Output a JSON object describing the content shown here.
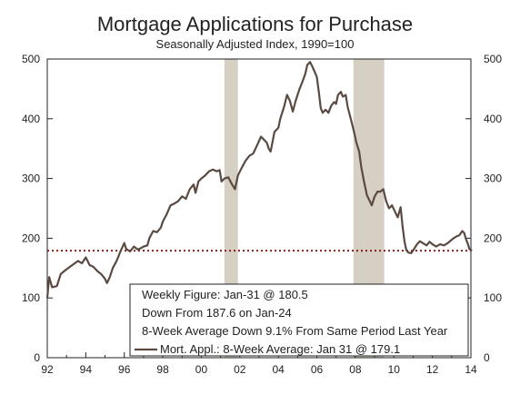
{
  "chart_data": {
    "type": "line",
    "title": "Mortgage Applications for Purchase",
    "subtitle": "Seasonally Adjusted Index, 1990=100",
    "xlim": [
      1992,
      2014
    ],
    "ylim": [
      0,
      500
    ],
    "x_ticks": [
      1992,
      1994,
      1996,
      1998,
      2000,
      2002,
      2004,
      2006,
      2008,
      2010,
      2012,
      2014
    ],
    "x_tick_labels": [
      "92",
      "94",
      "96",
      "98",
      "00",
      "02",
      "04",
      "06",
      "08",
      "10",
      "12",
      "14"
    ],
    "y_ticks": [
      0,
      100,
      200,
      300,
      400,
      500
    ],
    "y_tick_labels": [
      "0",
      "100",
      "200",
      "300",
      "400",
      "500"
    ],
    "recessions": [
      [
        2001.2,
        2001.9
      ],
      [
        2007.9,
        2009.5
      ]
    ],
    "reference_line": {
      "value": 179.1,
      "style": "dotted",
      "color": "#8b1a1a"
    },
    "annotations": [
      "Weekly Figure: Jan-31 @ 180.5",
      "Down From 187.6 on Jan-24",
      "8-Week Average Down 9.1% From Same Period Last Year"
    ],
    "series": [
      {
        "name": "Mort. Appl.: 8-Week Average: Jan 31 @ 179.1",
        "color": "#5a4a42",
        "points": [
          [
            1992.0,
            100
          ],
          [
            1992.1,
            135
          ],
          [
            1992.25,
            118
          ],
          [
            1992.5,
            120
          ],
          [
            1992.7,
            140
          ],
          [
            1993.0,
            148
          ],
          [
            1993.3,
            155
          ],
          [
            1993.6,
            162
          ],
          [
            1993.8,
            158
          ],
          [
            1994.0,
            168
          ],
          [
            1994.2,
            155
          ],
          [
            1994.4,
            152
          ],
          [
            1994.6,
            145
          ],
          [
            1994.8,
            140
          ],
          [
            1995.0,
            132
          ],
          [
            1995.1,
            125
          ],
          [
            1995.25,
            135
          ],
          [
            1995.4,
            150
          ],
          [
            1995.6,
            162
          ],
          [
            1995.8,
            178
          ],
          [
            1996.0,
            192
          ],
          [
            1996.1,
            182
          ],
          [
            1996.3,
            178
          ],
          [
            1996.5,
            186
          ],
          [
            1996.7,
            181
          ],
          [
            1996.9,
            184
          ],
          [
            1997.0,
            186
          ],
          [
            1997.2,
            188
          ],
          [
            1997.3,
            200
          ],
          [
            1997.5,
            212
          ],
          [
            1997.7,
            210
          ],
          [
            1997.9,
            218
          ],
          [
            1998.0,
            228
          ],
          [
            1998.2,
            240
          ],
          [
            1998.4,
            255
          ],
          [
            1998.6,
            258
          ],
          [
            1998.8,
            262
          ],
          [
            1999.0,
            270
          ],
          [
            1999.2,
            266
          ],
          [
            1999.4,
            282
          ],
          [
            1999.6,
            290
          ],
          [
            1999.7,
            276
          ],
          [
            1999.85,
            295
          ],
          [
            2000.0,
            300
          ],
          [
            2000.2,
            305
          ],
          [
            2000.4,
            312
          ],
          [
            2000.6,
            315
          ],
          [
            2000.8,
            312
          ],
          [
            2000.95,
            314
          ],
          [
            2001.05,
            295
          ],
          [
            2001.2,
            300
          ],
          [
            2001.4,
            302
          ],
          [
            2001.6,
            290
          ],
          [
            2001.75,
            282
          ],
          [
            2001.9,
            305
          ],
          [
            2002.1,
            318
          ],
          [
            2002.3,
            330
          ],
          [
            2002.5,
            338
          ],
          [
            2002.7,
            342
          ],
          [
            2002.9,
            356
          ],
          [
            2003.1,
            370
          ],
          [
            2003.25,
            365
          ],
          [
            2003.4,
            360
          ],
          [
            2003.5,
            350
          ],
          [
            2003.6,
            345
          ],
          [
            2003.8,
            378
          ],
          [
            2004.0,
            385
          ],
          [
            2004.1,
            400
          ],
          [
            2004.3,
            420
          ],
          [
            2004.45,
            440
          ],
          [
            2004.6,
            430
          ],
          [
            2004.75,
            412
          ],
          [
            2004.9,
            430
          ],
          [
            2005.1,
            450
          ],
          [
            2005.25,
            462
          ],
          [
            2005.4,
            475
          ],
          [
            2005.5,
            490
          ],
          [
            2005.65,
            495
          ],
          [
            2005.8,
            485
          ],
          [
            2006.0,
            470
          ],
          [
            2006.1,
            445
          ],
          [
            2006.2,
            418
          ],
          [
            2006.3,
            410
          ],
          [
            2006.45,
            415
          ],
          [
            2006.6,
            410
          ],
          [
            2006.75,
            422
          ],
          [
            2006.9,
            428
          ],
          [
            2007.0,
            425
          ],
          [
            2007.1,
            440
          ],
          [
            2007.25,
            445
          ],
          [
            2007.35,
            437
          ],
          [
            2007.5,
            440
          ],
          [
            2007.6,
            420
          ],
          [
            2007.8,
            395
          ],
          [
            2007.95,
            375
          ],
          [
            2008.05,
            360
          ],
          [
            2008.2,
            345
          ],
          [
            2008.3,
            320
          ],
          [
            2008.45,
            295
          ],
          [
            2008.6,
            272
          ],
          [
            2008.75,
            262
          ],
          [
            2008.85,
            255
          ],
          [
            2009.0,
            270
          ],
          [
            2009.15,
            278
          ],
          [
            2009.3,
            278
          ],
          [
            2009.45,
            282
          ],
          [
            2009.6,
            262
          ],
          [
            2009.75,
            250
          ],
          [
            2009.9,
            255
          ],
          [
            2010.05,
            245
          ],
          [
            2010.2,
            235
          ],
          [
            2010.35,
            252
          ],
          [
            2010.45,
            220
          ],
          [
            2010.55,
            195
          ],
          [
            2010.65,
            180
          ],
          [
            2010.75,
            176
          ],
          [
            2010.9,
            175
          ],
          [
            2011.05,
            182
          ],
          [
            2011.2,
            190
          ],
          [
            2011.35,
            195
          ],
          [
            2011.5,
            192
          ],
          [
            2011.7,
            188
          ],
          [
            2011.85,
            194
          ],
          [
            2012.0,
            190
          ],
          [
            2012.2,
            186
          ],
          [
            2012.4,
            190
          ],
          [
            2012.6,
            188
          ],
          [
            2012.8,
            192
          ],
          [
            2012.95,
            196
          ],
          [
            2013.1,
            200
          ],
          [
            2013.25,
            203
          ],
          [
            2013.4,
            205
          ],
          [
            2013.55,
            212
          ],
          [
            2013.65,
            209
          ],
          [
            2013.75,
            198
          ],
          [
            2013.85,
            190
          ],
          [
            2013.92,
            182
          ],
          [
            2014.05,
            179.1
          ]
        ]
      }
    ]
  }
}
